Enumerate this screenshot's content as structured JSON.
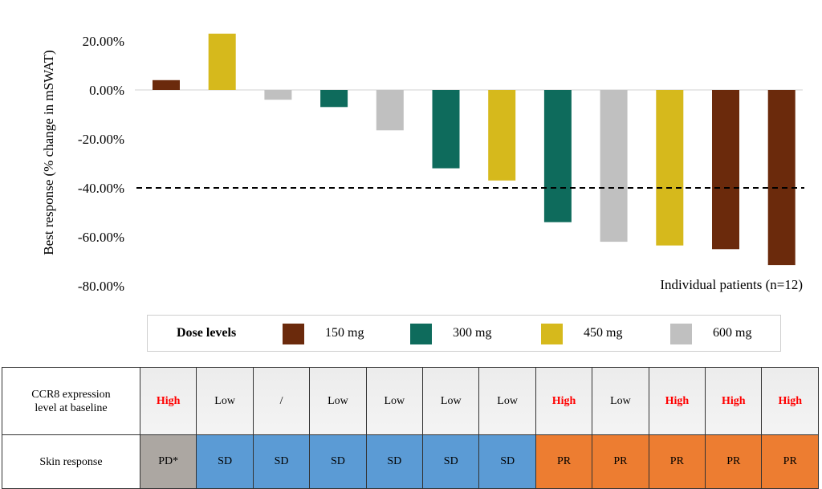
{
  "chart_data": {
    "type": "bar",
    "ylabel": "Best response (% change in mSWAT)",
    "annotation": "Individual patients (n=12)",
    "ylim": [
      -80,
      20
    ],
    "yticks": [
      "20.00%",
      "0.00%",
      "-20.00%",
      "-40.00%",
      "-60.00%",
      "-80.00%"
    ],
    "threshold": -40,
    "values": [
      4,
      23,
      -4,
      -7,
      -16.5,
      -32,
      -37,
      -54,
      -62,
      -63.5,
      -65,
      -71.5
    ],
    "dose": [
      "150 mg",
      "450 mg",
      "600 mg",
      "300 mg",
      "600 mg",
      "300 mg",
      "450 mg",
      "300 mg",
      "600 mg",
      "450 mg",
      "150 mg",
      "150 mg"
    ],
    "legend": {
      "title": "Dose levels",
      "entries": [
        {
          "label": "150 mg",
          "color": "#6b2a0c"
        },
        {
          "label": "300 mg",
          "color": "#0e6b5c"
        },
        {
          "label": "450 mg",
          "color": "#d6b91c"
        },
        {
          "label": "600 mg",
          "color": "#c0c0c0"
        }
      ]
    }
  },
  "table": {
    "rows": [
      {
        "header": [
          "CCR8 expression",
          "level at baseline"
        ],
        "cells": [
          "High",
          "Low",
          "/",
          "Low",
          "Low",
          "Low",
          "Low",
          "High",
          "Low",
          "High",
          "High",
          "High"
        ]
      },
      {
        "header": [
          "Skin response"
        ],
        "cells": [
          "PD*",
          "SD",
          "SD",
          "SD",
          "SD",
          "SD",
          "SD",
          "PR",
          "PR",
          "PR",
          "PR",
          "PR"
        ]
      }
    ],
    "response_colors": {
      "PD*": "#aca7a2",
      "SD": "#5b9bd5",
      "PR": "#ed7d31"
    }
  }
}
